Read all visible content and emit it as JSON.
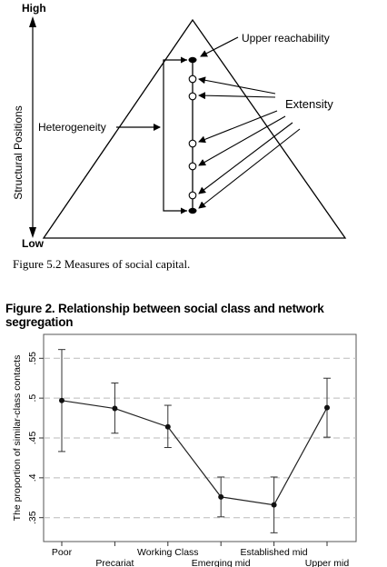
{
  "figure1": {
    "caption": "Figure 5.2  Measures of social capital.",
    "y_high": "High",
    "y_low": "Low",
    "y_axis_label": "Structural Positions",
    "label_upper": "Upper reachability",
    "label_extensity": "Extensity",
    "label_heterogeneity": "Heterogeneity"
  },
  "figure2": {
    "title": "Figure 2.  Relationship between social class and network segregation"
  },
  "chart_data": {
    "type": "line",
    "title": "Figure 2.  Relationship between social class and network segregation",
    "ylabel": "The proportion of similar-class contacts",
    "xlabel": "",
    "categories": [
      "Poor",
      "Precariat",
      "Working Class",
      "Emerging mid",
      "Established mid",
      "Upper mid"
    ],
    "ytick_labels": [
      ".35",
      ".4",
      ".45",
      ".5",
      ".55"
    ],
    "ylim": [
      0.32,
      0.58
    ],
    "grid": "horizontal-dashed",
    "series": [
      {
        "values": [
          0.497,
          0.487,
          0.464,
          0.376,
          0.366,
          0.488
        ],
        "ci_low": [
          0.433,
          0.456,
          0.438,
          0.351,
          0.331,
          0.451
        ],
        "ci_high": [
          0.561,
          0.519,
          0.491,
          0.401,
          0.401,
          0.525
        ]
      }
    ],
    "colors": {
      "line": "#222222",
      "grid": "#bbbbbb"
    }
  }
}
